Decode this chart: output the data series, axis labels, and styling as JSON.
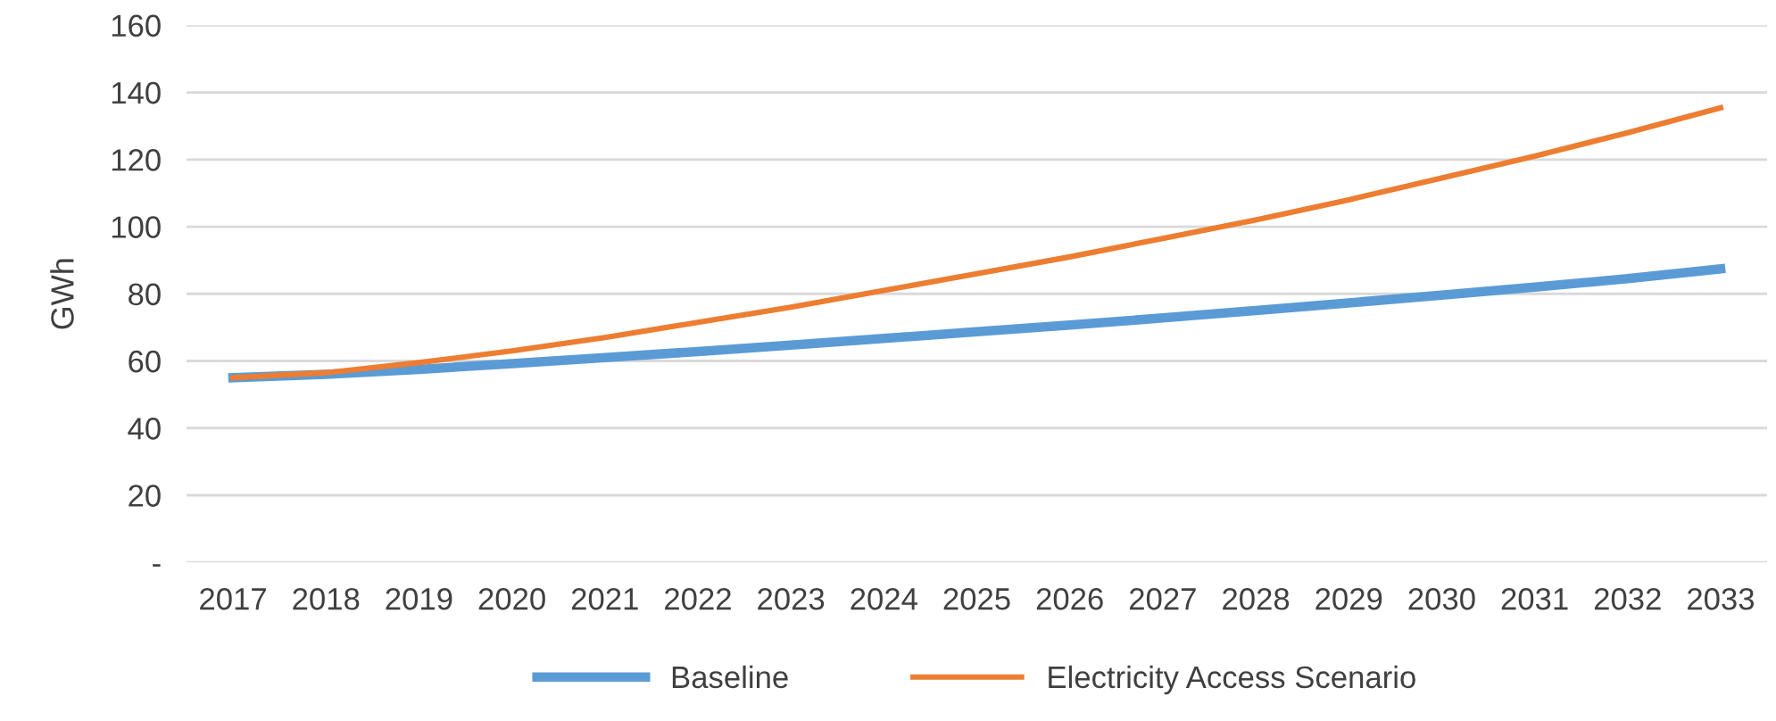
{
  "chart_data": {
    "type": "line",
    "ylabel": "GWh",
    "categories": [
      "2017",
      "2018",
      "2019",
      "2020",
      "2021",
      "2022",
      "2023",
      "2024",
      "2025",
      "2026",
      "2027",
      "2028",
      "2029",
      "2030",
      "2031",
      "2032",
      "2033"
    ],
    "series": [
      {
        "name": "Baseline",
        "color": "#5b9bd5",
        "values": [
          55,
          56,
          57.5,
          59.2,
          61,
          62.8,
          64.7,
          66.7,
          68.7,
          70.7,
          72.8,
          75,
          77.3,
          79.6,
          82,
          84.5,
          87.4
        ]
      },
      {
        "name": "Electricity Access Scenario",
        "color": "#ed7d31",
        "values": [
          55,
          56.5,
          59.5,
          63,
          67,
          71.5,
          76,
          81,
          86,
          91,
          96.5,
          102,
          108,
          114.5,
          121,
          128,
          135.4
        ]
      }
    ],
    "ylim": [
      0,
      160
    ],
    "yticks": [
      {
        "value": 0,
        "label": "-"
      },
      20,
      40,
      60,
      80,
      100,
      120,
      140,
      160
    ],
    "grid": "y",
    "legend": "bottom",
    "marker": "none",
    "line_style": "solid"
  }
}
